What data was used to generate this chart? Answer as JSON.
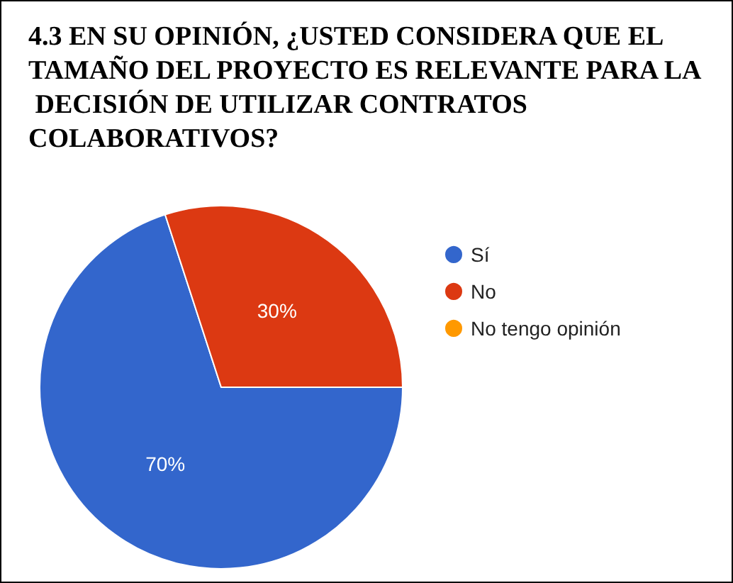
{
  "chart_data": {
    "type": "pie",
    "title": "4.3 EN SU OPINIÓN, ¿USTED CONSIDERA QUE EL TAMAÑO DEL PROYECTO ES RELEVANTE PARA LA DECISIÓN DE UTILIZAR CONTRATOS COLABORATIVOS?",
    "categories": [
      "Sí",
      "No",
      "No tengo opinión"
    ],
    "values": [
      70,
      30,
      0
    ],
    "colors": [
      "#3366cc",
      "#dc3912",
      "#ff9900"
    ],
    "value_labels": [
      "70%",
      "30%",
      null
    ],
    "legend": "right"
  }
}
